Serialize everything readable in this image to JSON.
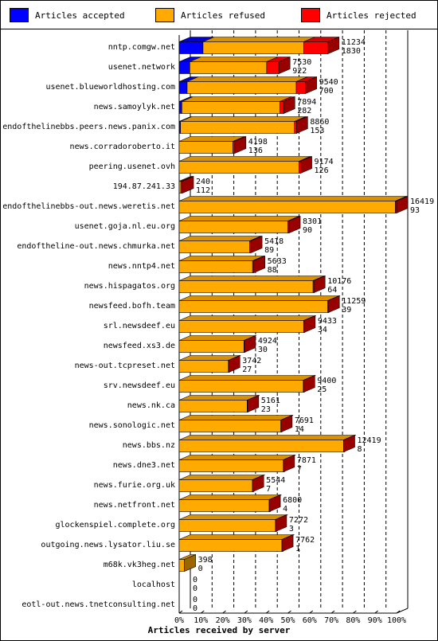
{
  "legend": [
    {
      "label": "Articles accepted",
      "color": "#0000ff"
    },
    {
      "label": "Articles refused",
      "color": "#ffaa00"
    },
    {
      "label": "Articles rejected",
      "color": "#ff0000"
    }
  ],
  "chart_data": {
    "type": "bar",
    "orientation": "horizontal",
    "stacked": true,
    "xlabel": "Articles received by server",
    "x_ticks": [
      "0%",
      "10%",
      "20%",
      "30%",
      "40%",
      "50%",
      "60%",
      "70%",
      "80%",
      "90%",
      "100%"
    ],
    "xlim": [
      0,
      16419
    ],
    "grid": true,
    "legend_position": "top",
    "series_names": [
      "Articles accepted",
      "Articles refused",
      "Articles rejected"
    ],
    "series_colors": [
      "#0000ff",
      "#ffaa00",
      "#ff0000"
    ],
    "rows": [
      {
        "label": "nntp.comgw.net",
        "total": 11234,
        "rejected": 1830,
        "accepted": 1800
      },
      {
        "label": "usenet.network",
        "total": 7530,
        "rejected": 922,
        "accepted": 800
      },
      {
        "label": "usenet.blueworldhosting.com",
        "total": 9540,
        "rejected": 700,
        "accepted": 600
      },
      {
        "label": "news.samoylyk.net",
        "total": 7894,
        "rejected": 282,
        "accepted": 200
      },
      {
        "label": "endofthelinebbs.peers.news.panix.com",
        "total": 8860,
        "rejected": 153,
        "accepted": 100
      },
      {
        "label": "news.corradoroberto.it",
        "total": 4198,
        "rejected": 136,
        "accepted": 0
      },
      {
        "label": "peering.usenet.ovh",
        "total": 9174,
        "rejected": 126,
        "accepted": 0
      },
      {
        "label": "194.87.241.33",
        "total": 240,
        "rejected": 112,
        "accepted": 0
      },
      {
        "label": "endofthelinebbs-out.news.weretis.net",
        "total": 16419,
        "rejected": 93,
        "accepted": 0
      },
      {
        "label": "usenet.goja.nl.eu.org",
        "total": 8301,
        "rejected": 90,
        "accepted": 0
      },
      {
        "label": "endoftheline-out.news.chmurka.net",
        "total": 5418,
        "rejected": 89,
        "accepted": 0
      },
      {
        "label": "news.nntp4.net",
        "total": 5633,
        "rejected": 88,
        "accepted": 0
      },
      {
        "label": "news.hispagatos.org",
        "total": 10176,
        "rejected": 64,
        "accepted": 0
      },
      {
        "label": "newsfeed.bofh.team",
        "total": 11259,
        "rejected": 39,
        "accepted": 0
      },
      {
        "label": "srl.newsdeef.eu",
        "total": 9433,
        "rejected": 34,
        "accepted": 0
      },
      {
        "label": "newsfeed.xs3.de",
        "total": 4924,
        "rejected": 30,
        "accepted": 0
      },
      {
        "label": "news-out.tcpreset.net",
        "total": 3742,
        "rejected": 27,
        "accepted": 0
      },
      {
        "label": "srv.newsdeef.eu",
        "total": 9400,
        "rejected": 25,
        "accepted": 0
      },
      {
        "label": "news.nk.ca",
        "total": 5161,
        "rejected": 23,
        "accepted": 0
      },
      {
        "label": "news.sonologic.net",
        "total": 7691,
        "rejected": 14,
        "accepted": 0
      },
      {
        "label": "news.bbs.nz",
        "total": 12419,
        "rejected": 8,
        "accepted": 0
      },
      {
        "label": "news.dne3.net",
        "total": 7871,
        "rejected": 7,
        "accepted": 0
      },
      {
        "label": "news.furie.org.uk",
        "total": 5544,
        "rejected": 7,
        "accepted": 0
      },
      {
        "label": "news.netfront.net",
        "total": 6800,
        "rejected": 4,
        "accepted": 0
      },
      {
        "label": "glockenspiel.complete.org",
        "total": 7272,
        "rejected": 3,
        "accepted": 0
      },
      {
        "label": "outgoing.news.lysator.liu.se",
        "total": 7762,
        "rejected": 1,
        "accepted": 0
      },
      {
        "label": "m68k.vk3heg.net",
        "total": 398,
        "rejected": 0,
        "accepted": 0
      },
      {
        "label": "localhost",
        "total": 0,
        "rejected": 0,
        "accepted": 0
      },
      {
        "label": "eotl-out.news.tnetconsulting.net",
        "total": 0,
        "rejected": 0,
        "accepted": 0
      }
    ]
  }
}
